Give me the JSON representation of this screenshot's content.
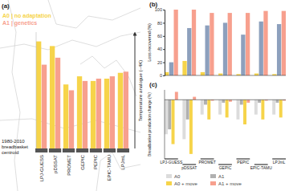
{
  "chart_data": [
    {
      "type": "bar",
      "title": "(a)",
      "categories": [
        "LPJ-GUESS",
        "pDSSAT",
        "PROMET",
        "GEPIC",
        "PEPIC",
        "EPIC-TAMU",
        "LPJmL"
      ],
      "series": [
        {
          "name": "A0 | no adaptation",
          "color": "#f6d44a",
          "values": [
            92,
            88,
            55,
            62,
            58,
            60,
            65
          ]
        },
        {
          "name": "A1 | genetics",
          "color": "#f7a08e",
          "values": [
            72,
            78,
            50,
            58,
            60,
            62,
            66
          ]
        }
      ],
      "ylim": [
        0,
        100
      ],
      "legend": "upper left",
      "tick_labels": "x",
      "annotations": [
        "1980-2010",
        "breadbasket",
        "centroid"
      ],
      "arrow_label": "Temperature analogue (~4K)"
    },
    {
      "type": "bar",
      "title": "(b)",
      "y_label": "Loss recovered (%)",
      "categories": [
        null,
        null,
        null,
        null,
        null,
        null,
        null
      ],
      "series": [
        {
          "color": "#f6d44a",
          "values": [
            5,
            22,
            5,
            3,
            2,
            3,
            2
          ]
        },
        {
          "color": "#8da0bd",
          "values": [
            20,
            72,
            76,
            80,
            62,
            82,
            78
          ]
        },
        {
          "color": "#f7a08e",
          "values": [
            100,
            100,
            95,
            95,
            95,
            98,
            98
          ]
        }
      ],
      "ylim": [
        0,
        100
      ],
      "yticks": [
        0,
        20,
        40,
        60,
        80,
        100
      ],
      "tick_labels": "y"
    },
    {
      "type": "bar",
      "title": "(c)",
      "y_label": "Breadbasket production change (%)",
      "categories": [
        "LPJ-GUESS",
        "pDSSAT",
        "PROMET",
        "GEPIC",
        "PEPIC",
        "EPIC-TAMU",
        "LPJmL"
      ],
      "series": [
        {
          "name": "A0",
          "color": "#dcdcdc",
          "values": [
            -35,
            -40,
            -15,
            -15,
            -20,
            -15,
            -15
          ]
        },
        {
          "name": "A1",
          "color": "#b0b0b0",
          "values": [
            -30,
            -20,
            -5,
            -3,
            -5,
            -3,
            -3
          ]
        },
        {
          "name": "A0 + move",
          "color": "#f6d44a",
          "values": [
            -45,
            -55,
            -20,
            -18,
            -25,
            -20,
            -18
          ]
        },
        {
          "name": "A1 + move",
          "color": "#f7a08e",
          "values": [
            8,
            3,
            -1,
            -2,
            -3,
            -1,
            -1
          ]
        }
      ],
      "ylim": [
        -60,
        10
      ],
      "legend": "lower left",
      "tick_labels": "x"
    }
  ]
}
